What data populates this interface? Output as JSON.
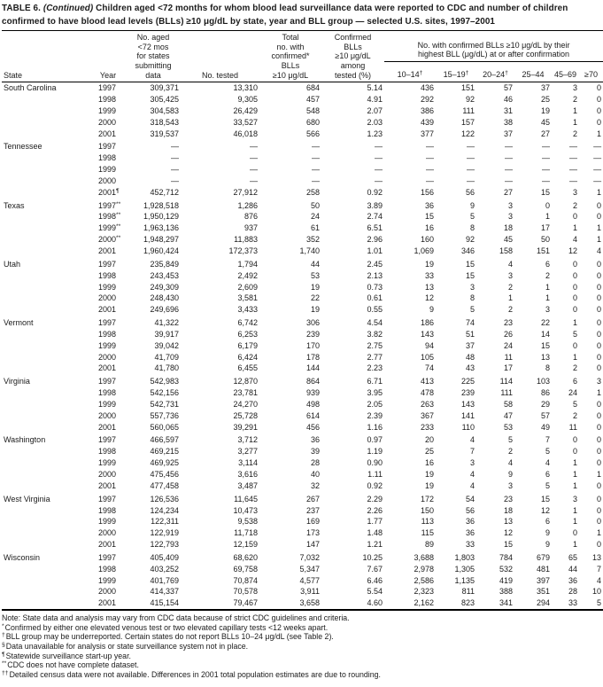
{
  "title": {
    "prefix": "TABLE 6. ",
    "continued": "(Continued)",
    "rest": " Children aged <72 months for whom blood lead surveillance data were reported to CDC and number of children confirmed to have blood lead levels (BLLs) ≥10 μg/dL by state, year and BLL group — selected U.S. sites, 1997–2001"
  },
  "table": {
    "columns": {
      "state": "State",
      "year": "Year",
      "aged": "No. aged\n<72 mos\nfor states\nsubmitting\ndata",
      "tested": "No. tested",
      "total_confirmed": "Total\nno. with\nconfirmed*\nBLLs\n≥10 μg/dL",
      "pct": "Confirmed\nBLLs\n≥10 μg/dL\namong\ntested (%)",
      "group": "No. with confirmed BLLs ≥10 μg/dL by their\nhighest BLL (μg/dL) at or after confirmation",
      "sub": [
        "10–14†",
        "15–19†",
        "20–24†",
        "25–44",
        "45–69",
        "≥70"
      ]
    },
    "groups": [
      {
        "state": "South Carolina",
        "rows": [
          {
            "year": "1997",
            "values": [
              "309,371",
              "13,310",
              "684",
              "5.14",
              "436",
              "151",
              "57",
              "37",
              "3",
              "0"
            ]
          },
          {
            "year": "1998",
            "values": [
              "305,425",
              "9,305",
              "457",
              "4.91",
              "292",
              "92",
              "46",
              "25",
              "2",
              "0"
            ]
          },
          {
            "year": "1999",
            "values": [
              "304,583",
              "26,429",
              "548",
              "2.07",
              "386",
              "111",
              "31",
              "19",
              "1",
              "0"
            ]
          },
          {
            "year": "2000",
            "values": [
              "318,543",
              "33,527",
              "680",
              "2.03",
              "439",
              "157",
              "38",
              "45",
              "1",
              "0"
            ]
          },
          {
            "year": "2001",
            "values": [
              "319,537",
              "46,018",
              "566",
              "1.23",
              "377",
              "122",
              "37",
              "27",
              "2",
              "1"
            ]
          }
        ]
      },
      {
        "state": "Tennessee",
        "rows": [
          {
            "year": "1997",
            "values": [
              "—",
              "—",
              "—",
              "—",
              "—",
              "—",
              "—",
              "—",
              "—",
              "—"
            ]
          },
          {
            "year": "1998",
            "values": [
              "—",
              "—",
              "—",
              "—",
              "—",
              "—",
              "—",
              "—",
              "—",
              "—"
            ]
          },
          {
            "year": "1999",
            "values": [
              "—",
              "—",
              "—",
              "—",
              "—",
              "—",
              "—",
              "—",
              "—",
              "—"
            ]
          },
          {
            "year": "2000",
            "values": [
              "—",
              "—",
              "—",
              "—",
              "—",
              "—",
              "—",
              "—",
              "—",
              "—"
            ]
          },
          {
            "year": "2001¶",
            "values": [
              "452,712",
              "27,912",
              "258",
              "0.92",
              "156",
              "56",
              "27",
              "15",
              "3",
              "1"
            ]
          }
        ]
      },
      {
        "state": "Texas",
        "rows": [
          {
            "year": "1997**",
            "values": [
              "1,928,518",
              "1,286",
              "50",
              "3.89",
              "36",
              "9",
              "3",
              "0",
              "2",
              "0"
            ]
          },
          {
            "year": "1998**",
            "values": [
              "1,950,129",
              "876",
              "24",
              "2.74",
              "15",
              "5",
              "3",
              "1",
              "0",
              "0"
            ]
          },
          {
            "year": "1999**",
            "values": [
              "1,963,136",
              "937",
              "61",
              "6.51",
              "16",
              "8",
              "18",
              "17",
              "1",
              "1"
            ]
          },
          {
            "year": "2000**",
            "values": [
              "1,948,297",
              "11,883",
              "352",
              "2.96",
              "160",
              "92",
              "45",
              "50",
              "4",
              "1"
            ]
          },
          {
            "year": "2001",
            "values": [
              "1,960,424",
              "172,373",
              "1,740",
              "1.01",
              "1,069",
              "346",
              "158",
              "151",
              "12",
              "4"
            ]
          }
        ]
      },
      {
        "state": "Utah",
        "rows": [
          {
            "year": "1997",
            "values": [
              "235,849",
              "1,794",
              "44",
              "2.45",
              "19",
              "15",
              "4",
              "6",
              "0",
              "0"
            ]
          },
          {
            "year": "1998",
            "values": [
              "243,453",
              "2,492",
              "53",
              "2.13",
              "33",
              "15",
              "3",
              "2",
              "0",
              "0"
            ]
          },
          {
            "year": "1999",
            "values": [
              "249,309",
              "2,609",
              "19",
              "0.73",
              "13",
              "3",
              "2",
              "1",
              "0",
              "0"
            ]
          },
          {
            "year": "2000",
            "values": [
              "248,430",
              "3,581",
              "22",
              "0.61",
              "12",
              "8",
              "1",
              "1",
              "0",
              "0"
            ]
          },
          {
            "year": "2001",
            "values": [
              "249,696",
              "3,433",
              "19",
              "0.55",
              "9",
              "5",
              "2",
              "3",
              "0",
              "0"
            ]
          }
        ]
      },
      {
        "state": "Vermont",
        "rows": [
          {
            "year": "1997",
            "values": [
              "41,322",
              "6,742",
              "306",
              "4.54",
              "186",
              "74",
              "23",
              "22",
              "1",
              "0"
            ]
          },
          {
            "year": "1998",
            "values": [
              "39,917",
              "6,253",
              "239",
              "3.82",
              "143",
              "51",
              "26",
              "14",
              "5",
              "0"
            ]
          },
          {
            "year": "1999",
            "values": [
              "39,042",
              "6,179",
              "170",
              "2.75",
              "94",
              "37",
              "24",
              "15",
              "0",
              "0"
            ]
          },
          {
            "year": "2000",
            "values": [
              "41,709",
              "6,424",
              "178",
              "2.77",
              "105",
              "48",
              "11",
              "13",
              "1",
              "0"
            ]
          },
          {
            "year": "2001",
            "values": [
              "41,780",
              "6,455",
              "144",
              "2.23",
              "74",
              "43",
              "17",
              "8",
              "2",
              "0"
            ]
          }
        ]
      },
      {
        "state": "Virginia",
        "rows": [
          {
            "year": "1997",
            "values": [
              "542,983",
              "12,870",
              "864",
              "6.71",
              "413",
              "225",
              "114",
              "103",
              "6",
              "3"
            ]
          },
          {
            "year": "1998",
            "values": [
              "542,156",
              "23,781",
              "939",
              "3.95",
              "478",
              "239",
              "111",
              "86",
              "24",
              "1"
            ]
          },
          {
            "year": "1999",
            "values": [
              "542,731",
              "24,270",
              "498",
              "2.05",
              "263",
              "143",
              "58",
              "29",
              "5",
              "0"
            ]
          },
          {
            "year": "2000",
            "values": [
              "557,736",
              "25,728",
              "614",
              "2.39",
              "367",
              "141",
              "47",
              "57",
              "2",
              "0"
            ]
          },
          {
            "year": "2001",
            "values": [
              "560,065",
              "39,291",
              "456",
              "1.16",
              "233",
              "110",
              "53",
              "49",
              "11",
              "0"
            ]
          }
        ]
      },
      {
        "state": "Washington",
        "rows": [
          {
            "year": "1997",
            "values": [
              "466,597",
              "3,712",
              "36",
              "0.97",
              "20",
              "4",
              "5",
              "7",
              "0",
              "0"
            ]
          },
          {
            "year": "1998",
            "values": [
              "469,215",
              "3,277",
              "39",
              "1.19",
              "25",
              "7",
              "2",
              "5",
              "0",
              "0"
            ]
          },
          {
            "year": "1999",
            "values": [
              "469,925",
              "3,114",
              "28",
              "0.90",
              "16",
              "3",
              "4",
              "4",
              "1",
              "0"
            ]
          },
          {
            "year": "2000",
            "values": [
              "475,456",
              "3,616",
              "40",
              "1.11",
              "19",
              "4",
              "9",
              "6",
              "1",
              "1"
            ]
          },
          {
            "year": "2001",
            "values": [
              "477,458",
              "3,487",
              "32",
              "0.92",
              "19",
              "4",
              "3",
              "5",
              "1",
              "0"
            ]
          }
        ]
      },
      {
        "state": "West Virginia",
        "rows": [
          {
            "year": "1997",
            "values": [
              "126,536",
              "11,645",
              "267",
              "2.29",
              "172",
              "54",
              "23",
              "15",
              "3",
              "0"
            ]
          },
          {
            "year": "1998",
            "values": [
              "124,234",
              "10,473",
              "237",
              "2.26",
              "150",
              "56",
              "18",
              "12",
              "1",
              "0"
            ]
          },
          {
            "year": "1999",
            "values": [
              "122,311",
              "9,538",
              "169",
              "1.77",
              "113",
              "36",
              "13",
              "6",
              "1",
              "0"
            ]
          },
          {
            "year": "2000",
            "values": [
              "122,919",
              "11,718",
              "173",
              "1.48",
              "115",
              "36",
              "12",
              "9",
              "0",
              "1"
            ]
          },
          {
            "year": "2001",
            "values": [
              "122,793",
              "12,159",
              "147",
              "1.21",
              "89",
              "33",
              "15",
              "9",
              "1",
              "0"
            ]
          }
        ]
      },
      {
        "state": "Wisconsin",
        "rows": [
          {
            "year": "1997",
            "values": [
              "405,409",
              "68,620",
              "7,032",
              "10.25",
              "3,688",
              "1,803",
              "784",
              "679",
              "65",
              "13"
            ]
          },
          {
            "year": "1998",
            "values": [
              "403,252",
              "69,758",
              "5,347",
              "7.67",
              "2,978",
              "1,305",
              "532",
              "481",
              "44",
              "7"
            ]
          },
          {
            "year": "1999",
            "values": [
              "401,769",
              "70,874",
              "4,577",
              "6.46",
              "2,586",
              "1,135",
              "419",
              "397",
              "36",
              "4"
            ]
          },
          {
            "year": "2000",
            "values": [
              "414,337",
              "70,578",
              "3,911",
              "5.54",
              "2,323",
              "811",
              "388",
              "351",
              "28",
              "10"
            ]
          },
          {
            "year": "2001",
            "values": [
              "415,154",
              "79,467",
              "3,658",
              "4.60",
              "2,162",
              "823",
              "341",
              "294",
              "33",
              "5"
            ]
          }
        ]
      }
    ]
  },
  "footnotes": [
    {
      "mark": "",
      "text": "Note: State data and analysis may vary from CDC data because of strict CDC guidelines and criteria."
    },
    {
      "mark": "*",
      "text": "Confirmed by either one elevated venous test or two elevated capillary tests <12 weeks apart."
    },
    {
      "mark": "†",
      "text": "BLL group may be underreported. Certain states do not report BLLs 10–24 μg/dL (see Table 2)."
    },
    {
      "mark": "§",
      "text": "Data unavailable for analysis or state surveillance system not in place."
    },
    {
      "mark": "¶",
      "text": "Statewide surveillance start-up year."
    },
    {
      "mark": "**",
      "text": "CDC does not have complete dataset."
    },
    {
      "mark": "††",
      "text": "Detailed census data were not available. Differences in 2001 total population estimates are due to rounding."
    }
  ]
}
